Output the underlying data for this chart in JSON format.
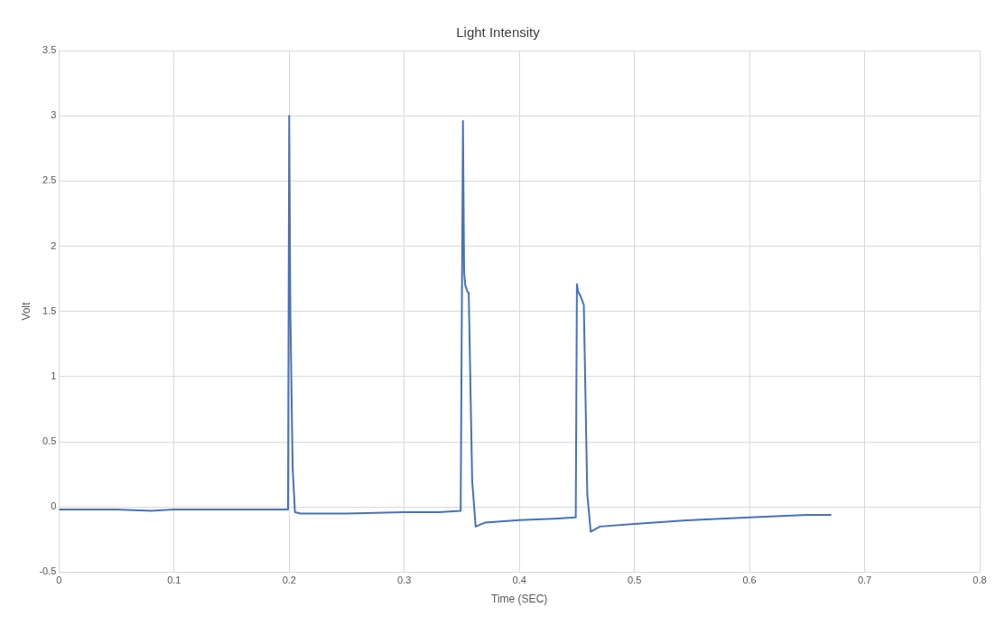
{
  "chart_data": {
    "type": "line",
    "title": "Light Intensity",
    "xlabel": "Time (SEC)",
    "ylabel": "Volt",
    "series": [
      {
        "color": "#4472c4",
        "x": [
          0,
          0.02,
          0.05,
          0.08,
          0.1,
          0.13,
          0.16,
          0.19,
          0.199,
          0.2,
          0.201,
          0.203,
          0.205,
          0.21,
          0.25,
          0.3,
          0.33,
          0.349,
          0.351,
          0.352,
          0.353,
          0.355,
          0.356,
          0.359,
          0.362,
          0.37,
          0.4,
          0.43,
          0.449,
          0.45,
          0.451,
          0.453,
          0.456,
          0.459,
          0.462,
          0.47,
          0.5,
          0.55,
          0.6,
          0.65,
          0.671
        ],
        "values": [
          -0.02,
          -0.02,
          -0.02,
          -0.03,
          -0.02,
          -0.02,
          -0.02,
          -0.02,
          -0.02,
          3.0,
          1.5,
          0.3,
          -0.04,
          -0.05,
          -0.05,
          -0.04,
          -0.04,
          -0.03,
          2.96,
          1.8,
          1.7,
          1.65,
          1.64,
          0.2,
          -0.15,
          -0.12,
          -0.1,
          -0.09,
          -0.08,
          1.71,
          1.65,
          1.62,
          1.55,
          0.1,
          -0.19,
          -0.15,
          -0.13,
          -0.1,
          -0.08,
          -0.06,
          -0.06
        ]
      }
    ],
    "xlim": [
      0,
      0.8
    ],
    "xticks": [
      0,
      0.1,
      0.2,
      0.3,
      0.4,
      0.5,
      0.6,
      0.7,
      0.8
    ],
    "ylim": [
      -0.5,
      3.5
    ],
    "yticks": [
      -0.5,
      0,
      0.5,
      1,
      1.5,
      2,
      2.5,
      3,
      3.5
    ],
    "grid": true,
    "legend": false,
    "marker": "none",
    "line_style": "solid"
  }
}
